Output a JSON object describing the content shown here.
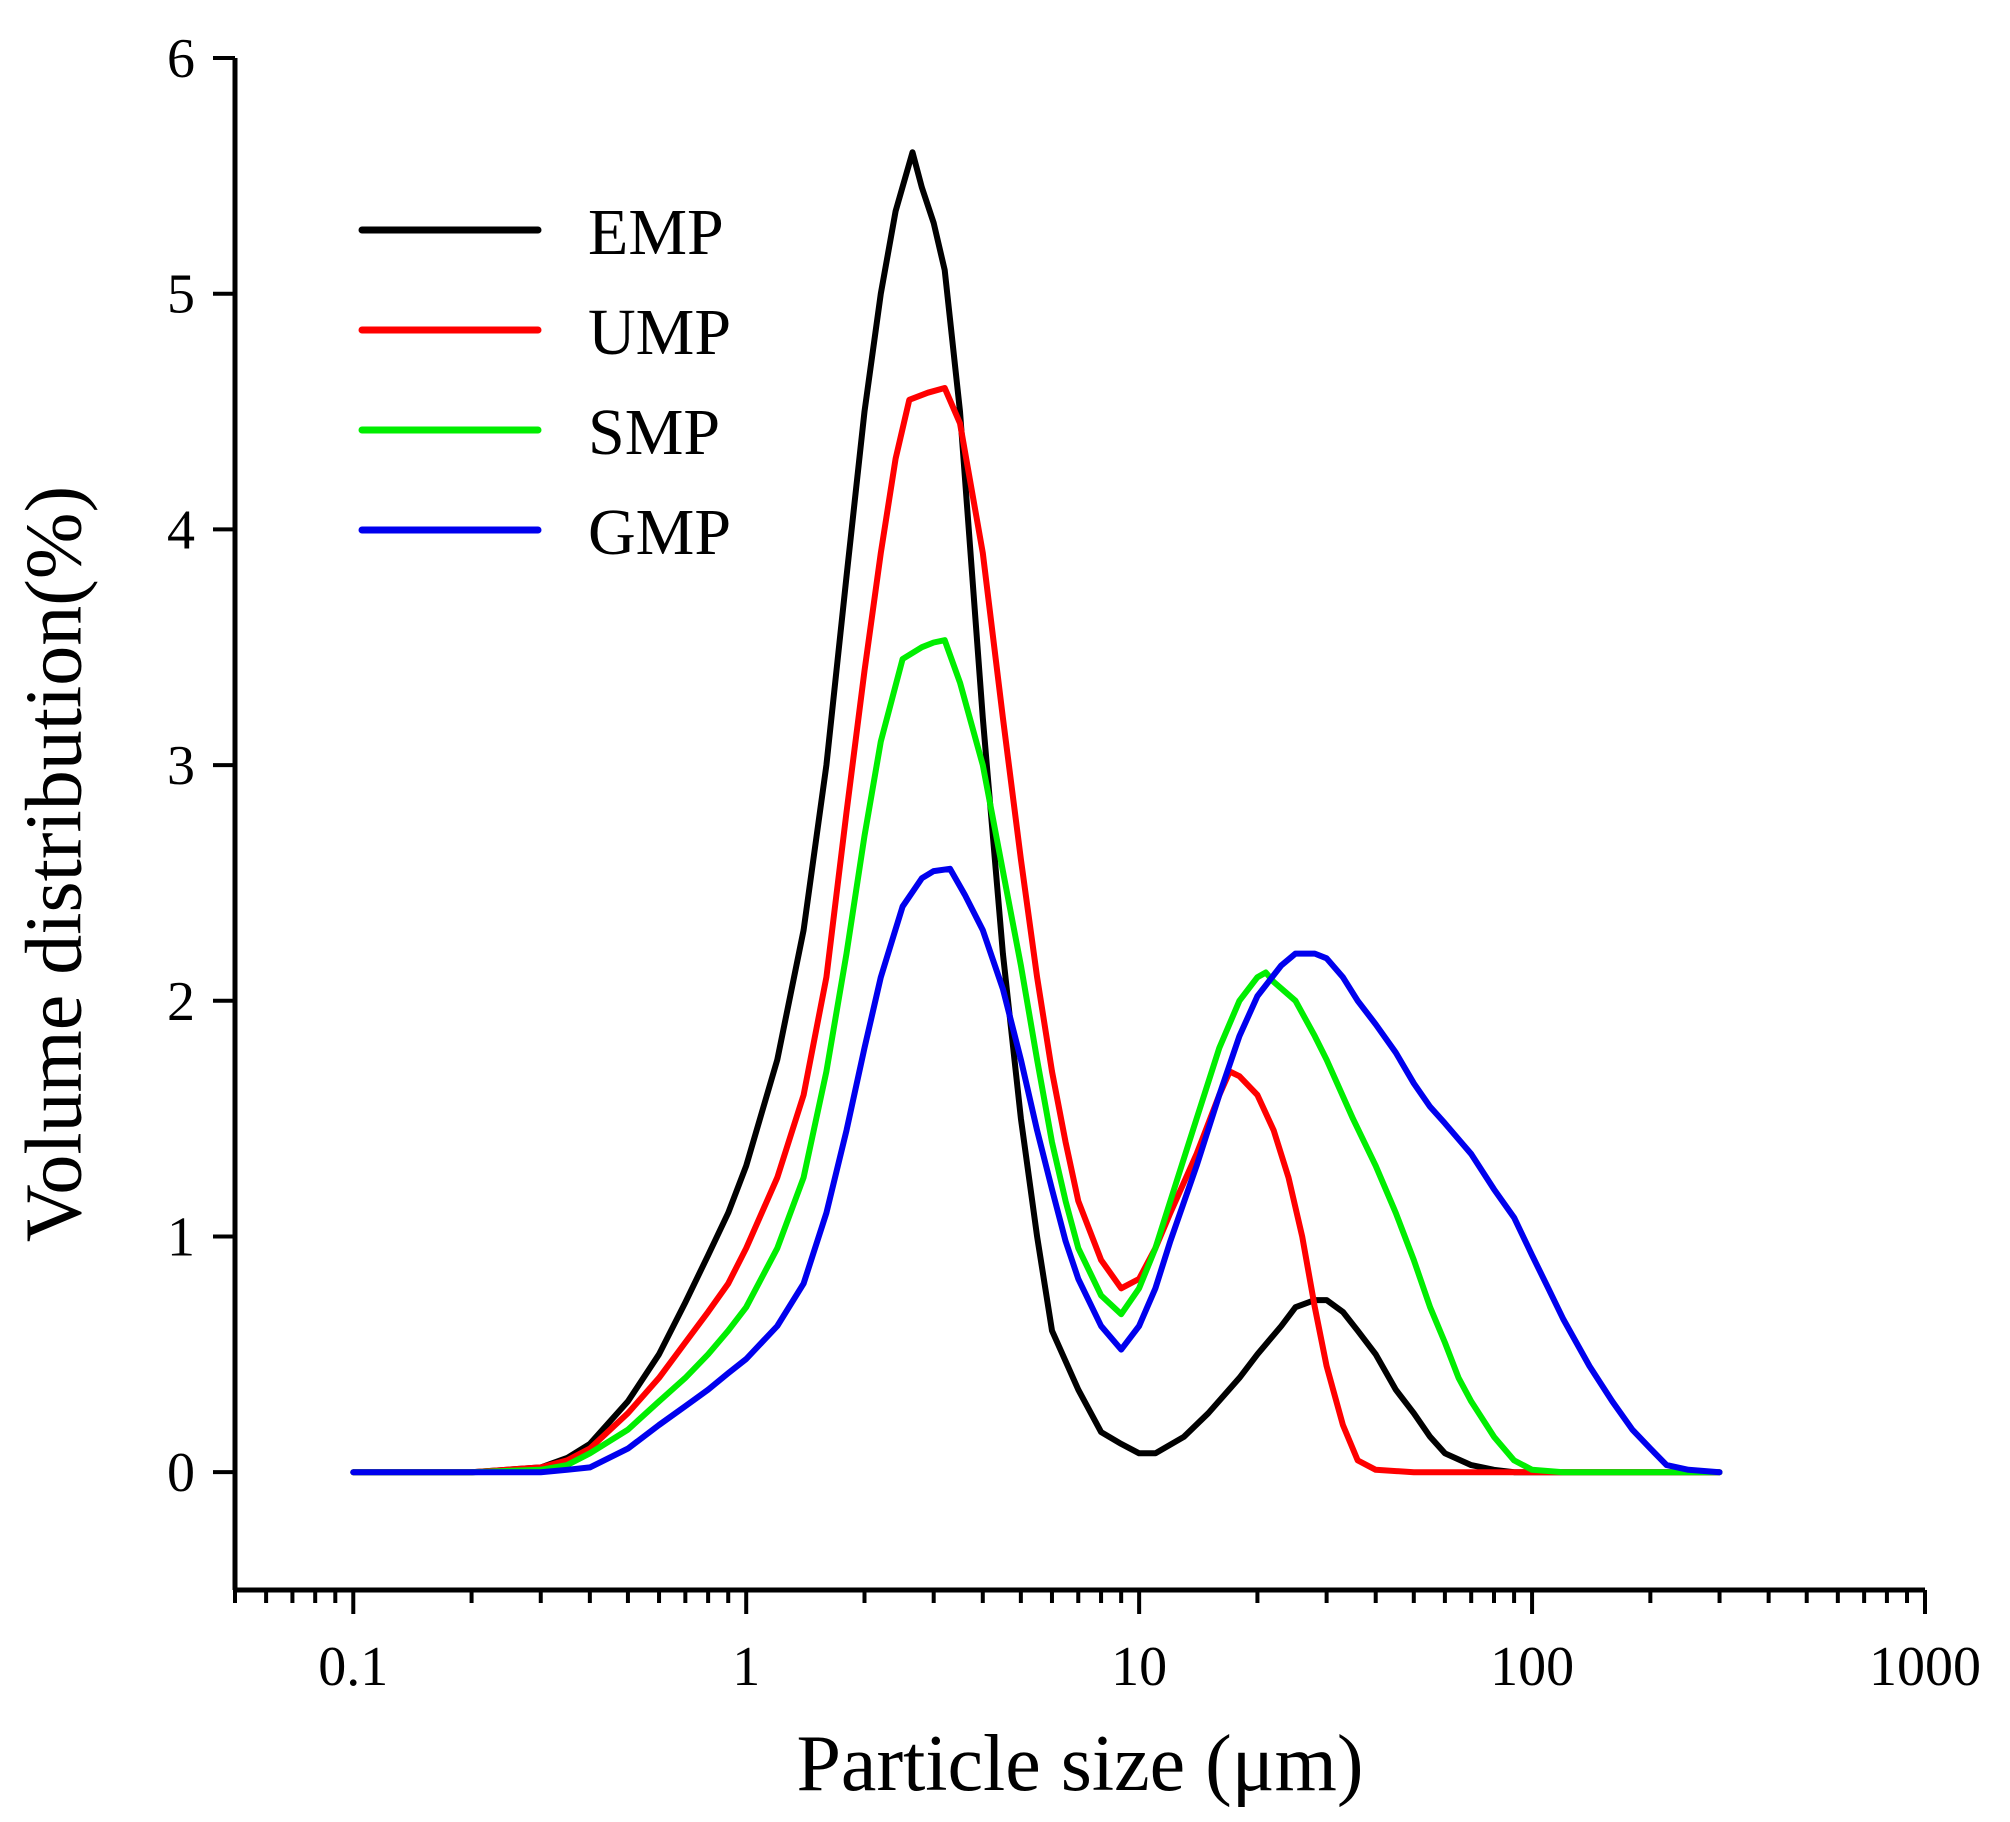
{
  "chart_data": {
    "type": "line",
    "title": "",
    "xlabel": "Particle size (μm)",
    "ylabel": "Volume distribution(%)",
    "xscale": "log",
    "xlim": [
      0.05,
      1000
    ],
    "ylim": [
      -0.5,
      6
    ],
    "x_ticks": [
      0.1,
      1,
      10,
      100,
      1000
    ],
    "x_tick_labels": [
      "0.1",
      "1",
      "10",
      "100",
      "1000"
    ],
    "y_ticks": [
      0,
      1,
      2,
      3,
      4,
      5,
      6
    ],
    "y_tick_labels": [
      "0",
      "1",
      "2",
      "3",
      "4",
      "5",
      "6"
    ],
    "grid": false,
    "legend_position": "top-left",
    "series": [
      {
        "name": "EMP",
        "color": "#000000",
        "points": [
          [
            0.1,
            0
          ],
          [
            0.2,
            0
          ],
          [
            0.3,
            0.02
          ],
          [
            0.35,
            0.06
          ],
          [
            0.4,
            0.12
          ],
          [
            0.5,
            0.3
          ],
          [
            0.6,
            0.5
          ],
          [
            0.7,
            0.72
          ],
          [
            0.8,
            0.92
          ],
          [
            0.9,
            1.1
          ],
          [
            1.0,
            1.3
          ],
          [
            1.2,
            1.75
          ],
          [
            1.4,
            2.3
          ],
          [
            1.6,
            3.0
          ],
          [
            1.8,
            3.8
          ],
          [
            2.0,
            4.5
          ],
          [
            2.2,
            5.0
          ],
          [
            2.4,
            5.35
          ],
          [
            2.65,
            5.6
          ],
          [
            2.8,
            5.45
          ],
          [
            3.0,
            5.3
          ],
          [
            3.2,
            5.1
          ],
          [
            3.5,
            4.5
          ],
          [
            4.0,
            3.2
          ],
          [
            4.5,
            2.2
          ],
          [
            5.0,
            1.5
          ],
          [
            5.5,
            1.0
          ],
          [
            6.0,
            0.6
          ],
          [
            7.0,
            0.35
          ],
          [
            8.0,
            0.17
          ],
          [
            9.0,
            0.12
          ],
          [
            10,
            0.08
          ],
          [
            11,
            0.08
          ],
          [
            13,
            0.15
          ],
          [
            15,
            0.25
          ],
          [
            18,
            0.4
          ],
          [
            20,
            0.5
          ],
          [
            23,
            0.62
          ],
          [
            25,
            0.7
          ],
          [
            28,
            0.73
          ],
          [
            30,
            0.73
          ],
          [
            33,
            0.68
          ],
          [
            36,
            0.6
          ],
          [
            40,
            0.5
          ],
          [
            45,
            0.35
          ],
          [
            50,
            0.25
          ],
          [
            55,
            0.15
          ],
          [
            60,
            0.08
          ],
          [
            70,
            0.03
          ],
          [
            80,
            0.01
          ],
          [
            90,
            0
          ],
          [
            300,
            0
          ]
        ]
      },
      {
        "name": "UMP",
        "color": "#ff0000",
        "points": [
          [
            0.1,
            0
          ],
          [
            0.2,
            0
          ],
          [
            0.3,
            0.02
          ],
          [
            0.35,
            0.05
          ],
          [
            0.4,
            0.1
          ],
          [
            0.5,
            0.25
          ],
          [
            0.6,
            0.4
          ],
          [
            0.7,
            0.55
          ],
          [
            0.8,
            0.68
          ],
          [
            0.9,
            0.8
          ],
          [
            1.0,
            0.95
          ],
          [
            1.2,
            1.25
          ],
          [
            1.4,
            1.6
          ],
          [
            1.6,
            2.1
          ],
          [
            1.8,
            2.8
          ],
          [
            2.0,
            3.4
          ],
          [
            2.2,
            3.9
          ],
          [
            2.4,
            4.3
          ],
          [
            2.6,
            4.55
          ],
          [
            2.9,
            4.58
          ],
          [
            3.2,
            4.6
          ],
          [
            3.5,
            4.45
          ],
          [
            4.0,
            3.9
          ],
          [
            4.5,
            3.2
          ],
          [
            5.0,
            2.6
          ],
          [
            5.5,
            2.1
          ],
          [
            6.0,
            1.7
          ],
          [
            6.5,
            1.4
          ],
          [
            7.0,
            1.15
          ],
          [
            8.0,
            0.9
          ],
          [
            9.0,
            0.78
          ],
          [
            10,
            0.82
          ],
          [
            11,
            0.95
          ],
          [
            12,
            1.1
          ],
          [
            14,
            1.35
          ],
          [
            16,
            1.6
          ],
          [
            17,
            1.7
          ],
          [
            18,
            1.68
          ],
          [
            20,
            1.6
          ],
          [
            22,
            1.45
          ],
          [
            24,
            1.25
          ],
          [
            26,
            1.0
          ],
          [
            28,
            0.7
          ],
          [
            30,
            0.45
          ],
          [
            33,
            0.2
          ],
          [
            36,
            0.05
          ],
          [
            40,
            0.01
          ],
          [
            50,
            0
          ],
          [
            300,
            0
          ]
        ]
      },
      {
        "name": "SMP",
        "color": "#00ee00",
        "points": [
          [
            0.1,
            0
          ],
          [
            0.2,
            0
          ],
          [
            0.3,
            0.01
          ],
          [
            0.35,
            0.03
          ],
          [
            0.4,
            0.08
          ],
          [
            0.5,
            0.18
          ],
          [
            0.6,
            0.3
          ],
          [
            0.7,
            0.4
          ],
          [
            0.8,
            0.5
          ],
          [
            0.9,
            0.6
          ],
          [
            1.0,
            0.7
          ],
          [
            1.2,
            0.95
          ],
          [
            1.4,
            1.25
          ],
          [
            1.6,
            1.7
          ],
          [
            1.8,
            2.2
          ],
          [
            2.0,
            2.7
          ],
          [
            2.2,
            3.1
          ],
          [
            2.5,
            3.45
          ],
          [
            2.8,
            3.5
          ],
          [
            3.0,
            3.52
          ],
          [
            3.2,
            3.53
          ],
          [
            3.5,
            3.35
          ],
          [
            4.0,
            3.0
          ],
          [
            4.5,
            2.55
          ],
          [
            5.0,
            2.15
          ],
          [
            5.5,
            1.75
          ],
          [
            6.0,
            1.4
          ],
          [
            6.5,
            1.15
          ],
          [
            7.0,
            0.95
          ],
          [
            8.0,
            0.75
          ],
          [
            9.0,
            0.67
          ],
          [
            10,
            0.78
          ],
          [
            11,
            0.95
          ],
          [
            12,
            1.15
          ],
          [
            14,
            1.5
          ],
          [
            16,
            1.8
          ],
          [
            18,
            2.0
          ],
          [
            20,
            2.1
          ],
          [
            21,
            2.12
          ],
          [
            22,
            2.08
          ],
          [
            25,
            2.0
          ],
          [
            28,
            1.85
          ],
          [
            30,
            1.75
          ],
          [
            35,
            1.5
          ],
          [
            40,
            1.3
          ],
          [
            45,
            1.1
          ],
          [
            50,
            0.9
          ],
          [
            55,
            0.7
          ],
          [
            60,
            0.55
          ],
          [
            65,
            0.4
          ],
          [
            70,
            0.3
          ],
          [
            80,
            0.15
          ],
          [
            90,
            0.05
          ],
          [
            100,
            0.01
          ],
          [
            120,
            0
          ],
          [
            300,
            0
          ]
        ]
      },
      {
        "name": "GMP",
        "color": "#0000ee",
        "points": [
          [
            0.1,
            0
          ],
          [
            0.2,
            0
          ],
          [
            0.3,
            0
          ],
          [
            0.35,
            0.01
          ],
          [
            0.4,
            0.02
          ],
          [
            0.5,
            0.1
          ],
          [
            0.6,
            0.2
          ],
          [
            0.7,
            0.28
          ],
          [
            0.8,
            0.35
          ],
          [
            0.9,
            0.42
          ],
          [
            1.0,
            0.48
          ],
          [
            1.2,
            0.62
          ],
          [
            1.4,
            0.8
          ],
          [
            1.6,
            1.1
          ],
          [
            1.8,
            1.45
          ],
          [
            2.0,
            1.8
          ],
          [
            2.2,
            2.1
          ],
          [
            2.5,
            2.4
          ],
          [
            2.8,
            2.52
          ],
          [
            3.0,
            2.55
          ],
          [
            3.3,
            2.56
          ],
          [
            3.6,
            2.45
          ],
          [
            4.0,
            2.3
          ],
          [
            4.5,
            2.05
          ],
          [
            5.0,
            1.75
          ],
          [
            5.5,
            1.45
          ],
          [
            6.0,
            1.2
          ],
          [
            6.5,
            0.98
          ],
          [
            7.0,
            0.82
          ],
          [
            8.0,
            0.62
          ],
          [
            9.0,
            0.52
          ],
          [
            10,
            0.62
          ],
          [
            11,
            0.78
          ],
          [
            12,
            0.98
          ],
          [
            14,
            1.3
          ],
          [
            16,
            1.6
          ],
          [
            18,
            1.85
          ],
          [
            20,
            2.02
          ],
          [
            23,
            2.15
          ],
          [
            25,
            2.2
          ],
          [
            28,
            2.2
          ],
          [
            30,
            2.18
          ],
          [
            33,
            2.1
          ],
          [
            36,
            2.0
          ],
          [
            40,
            1.9
          ],
          [
            45,
            1.78
          ],
          [
            50,
            1.65
          ],
          [
            55,
            1.55
          ],
          [
            60,
            1.48
          ],
          [
            70,
            1.35
          ],
          [
            80,
            1.2
          ],
          [
            90,
            1.08
          ],
          [
            100,
            0.92
          ],
          [
            110,
            0.78
          ],
          [
            120,
            0.65
          ],
          [
            140,
            0.45
          ],
          [
            160,
            0.3
          ],
          [
            180,
            0.18
          ],
          [
            200,
            0.1
          ],
          [
            220,
            0.03
          ],
          [
            250,
            0.01
          ],
          [
            300,
            0
          ]
        ]
      }
    ]
  }
}
